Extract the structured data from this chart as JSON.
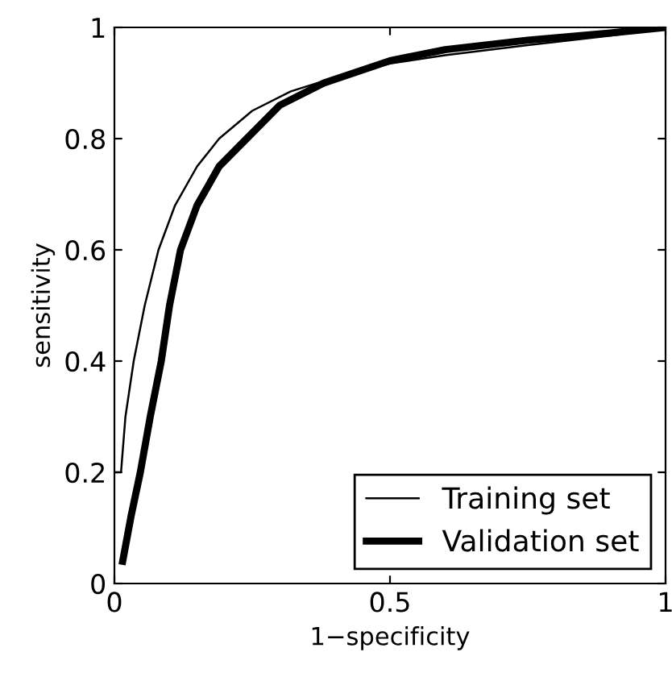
{
  "chart_data": {
    "type": "line",
    "xlabel": "1−specificity",
    "ylabel": "sensitivity",
    "xlim": [
      0,
      1
    ],
    "ylim": [
      0,
      1
    ],
    "xticks": [
      0,
      0.5,
      1
    ],
    "yticks": [
      0,
      0.2,
      0.4,
      0.6,
      0.8,
      1
    ],
    "grid": false,
    "legend": "bottom right",
    "marker": "none",
    "line_style": "solid",
    "series": [
      {
        "name": "Training set",
        "color": "#000000",
        "x": [
          0.0,
          0.012,
          0.02,
          0.035,
          0.055,
          0.08,
          0.11,
          0.15,
          0.19,
          0.25,
          0.32,
          0.4,
          0.5,
          0.6,
          0.75,
          0.9,
          1.0
        ],
        "values": [
          0.2,
          0.2,
          0.3,
          0.4,
          0.5,
          0.6,
          0.68,
          0.75,
          0.8,
          0.85,
          0.885,
          0.91,
          0.935,
          0.95,
          0.968,
          0.985,
          1.0
        ]
      },
      {
        "name": "Validation set",
        "color": "#000000",
        "x": [
          0.015,
          0.03,
          0.047,
          0.065,
          0.085,
          0.1,
          0.12,
          0.15,
          0.19,
          0.24,
          0.3,
          0.38,
          0.5,
          0.6,
          0.75,
          0.9,
          1.0
        ],
        "values": [
          0.04,
          0.12,
          0.2,
          0.3,
          0.4,
          0.5,
          0.6,
          0.68,
          0.75,
          0.8,
          0.86,
          0.9,
          0.94,
          0.96,
          0.977,
          0.99,
          1.0
        ]
      }
    ]
  }
}
